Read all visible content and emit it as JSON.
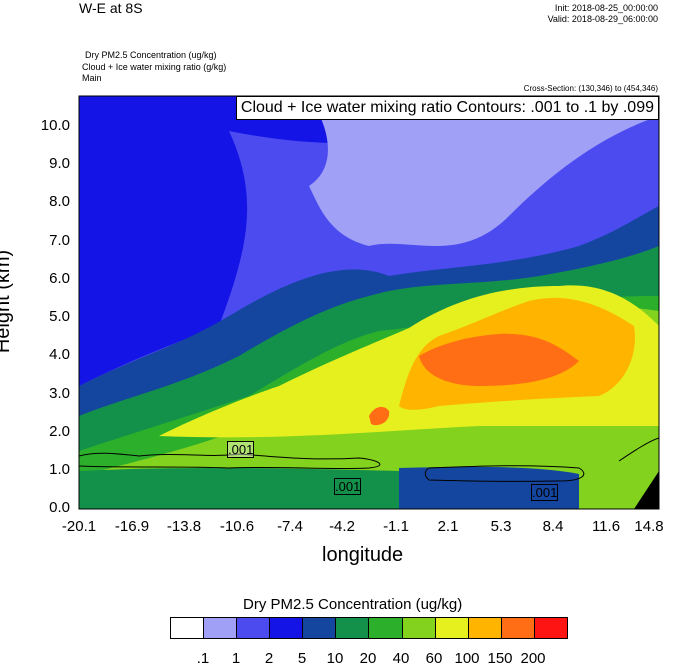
{
  "header": {
    "title": "W-E at 8S",
    "init": "Init: 2018-08-25_00:00:00",
    "valid": "Valid: 2018-08-29_06:00:00",
    "field1": "Dry PM2.5 Concentration   (ug/kg)",
    "field2": "Cloud + Ice water mixing ratio   (g/kg)",
    "field3": "Main",
    "cross_section": "Cross-Section: (130,346) to (454,346)"
  },
  "chart_data": {
    "type": "heatmap",
    "title": "Cloud + Ice water mixing ratio Contours: .001 to .1 by .099",
    "xlabel": "longitude",
    "ylabel": "Height (km)",
    "xlim": [
      -20.1,
      14.8
    ],
    "ylim": [
      0.0,
      10.8
    ],
    "x_ticks": [
      "-20.1",
      "-16.9",
      "-13.8",
      "-10.6",
      "-7.4",
      "-4.2",
      "-1.1",
      "2.1",
      "5.3",
      "8.4",
      "11.6",
      "14.8"
    ],
    "y_ticks": [
      "0.0",
      "1.0",
      "2.0",
      "3.0",
      "4.0",
      "5.0",
      "6.0",
      "7.0",
      "8.0",
      "9.0",
      "10.0"
    ],
    "colorbar_title": "Dry PM2.5 Concentration  (ug/kg)",
    "colorbar_labels": [
      ".1",
      "1",
      "2",
      "5",
      "10",
      "20",
      "40",
      "60",
      "100",
      "150",
      "200"
    ],
    "colorbar_colors": [
      "#ffffff",
      "#a0a0f7",
      "#4b4bf0",
      "#1414e6",
      "#1446a0",
      "#13914a",
      "#2cb02c",
      "#82d21e",
      "#e6f01e",
      "#ffb400",
      "#ff6e14",
      "#ff1414"
    ],
    "contour_labels": [
      ".001",
      ".001",
      ".001"
    ]
  }
}
